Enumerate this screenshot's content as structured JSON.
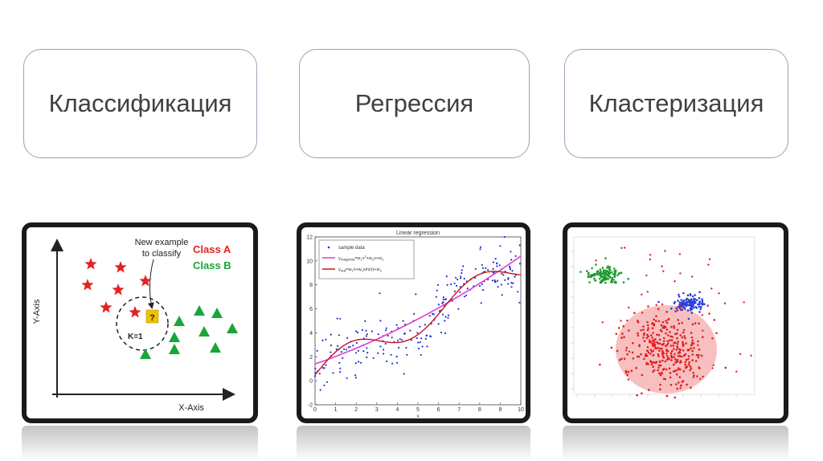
{
  "headings": {
    "classification": "Классификация",
    "regression": "Регрессия",
    "clustering": "Кластеризация"
  },
  "classification_panel": {
    "y_axis": "Y-Axis",
    "x_axis": "X-Axis",
    "callout_line1": "New example",
    "callout_line2": "to classify",
    "class_a": "Class A",
    "class_b": "Class B",
    "k_label": "K=1",
    "unknown_mark": "?",
    "colors": {
      "class_a": "#e32222",
      "class_b": "#19a53a",
      "unknown": "#f2c200"
    }
  },
  "regression_panel": {
    "title": "Linear regression",
    "x_axis_letter": "x",
    "legend": {
      "sample": "sample data",
      "magenta_sub": "magenta",
      "red_sub": "red"
    },
    "colors": {
      "points": "#2233cc",
      "magenta": "#e23bd6",
      "red": "#c4161c"
    },
    "x_ticks": [
      "0",
      "1",
      "2",
      "3",
      "4",
      "5",
      "6",
      "7",
      "8",
      "9",
      "10"
    ],
    "y_ticks": [
      "-2",
      "0",
      "2",
      "4",
      "6",
      "8",
      "10",
      "12"
    ]
  },
  "clustering_panel": {
    "colors": {
      "green": "#1f9a2e",
      "blue": "#2a3fd9",
      "red": "#e11f1f",
      "halo": "#f4a9a9"
    }
  }
}
